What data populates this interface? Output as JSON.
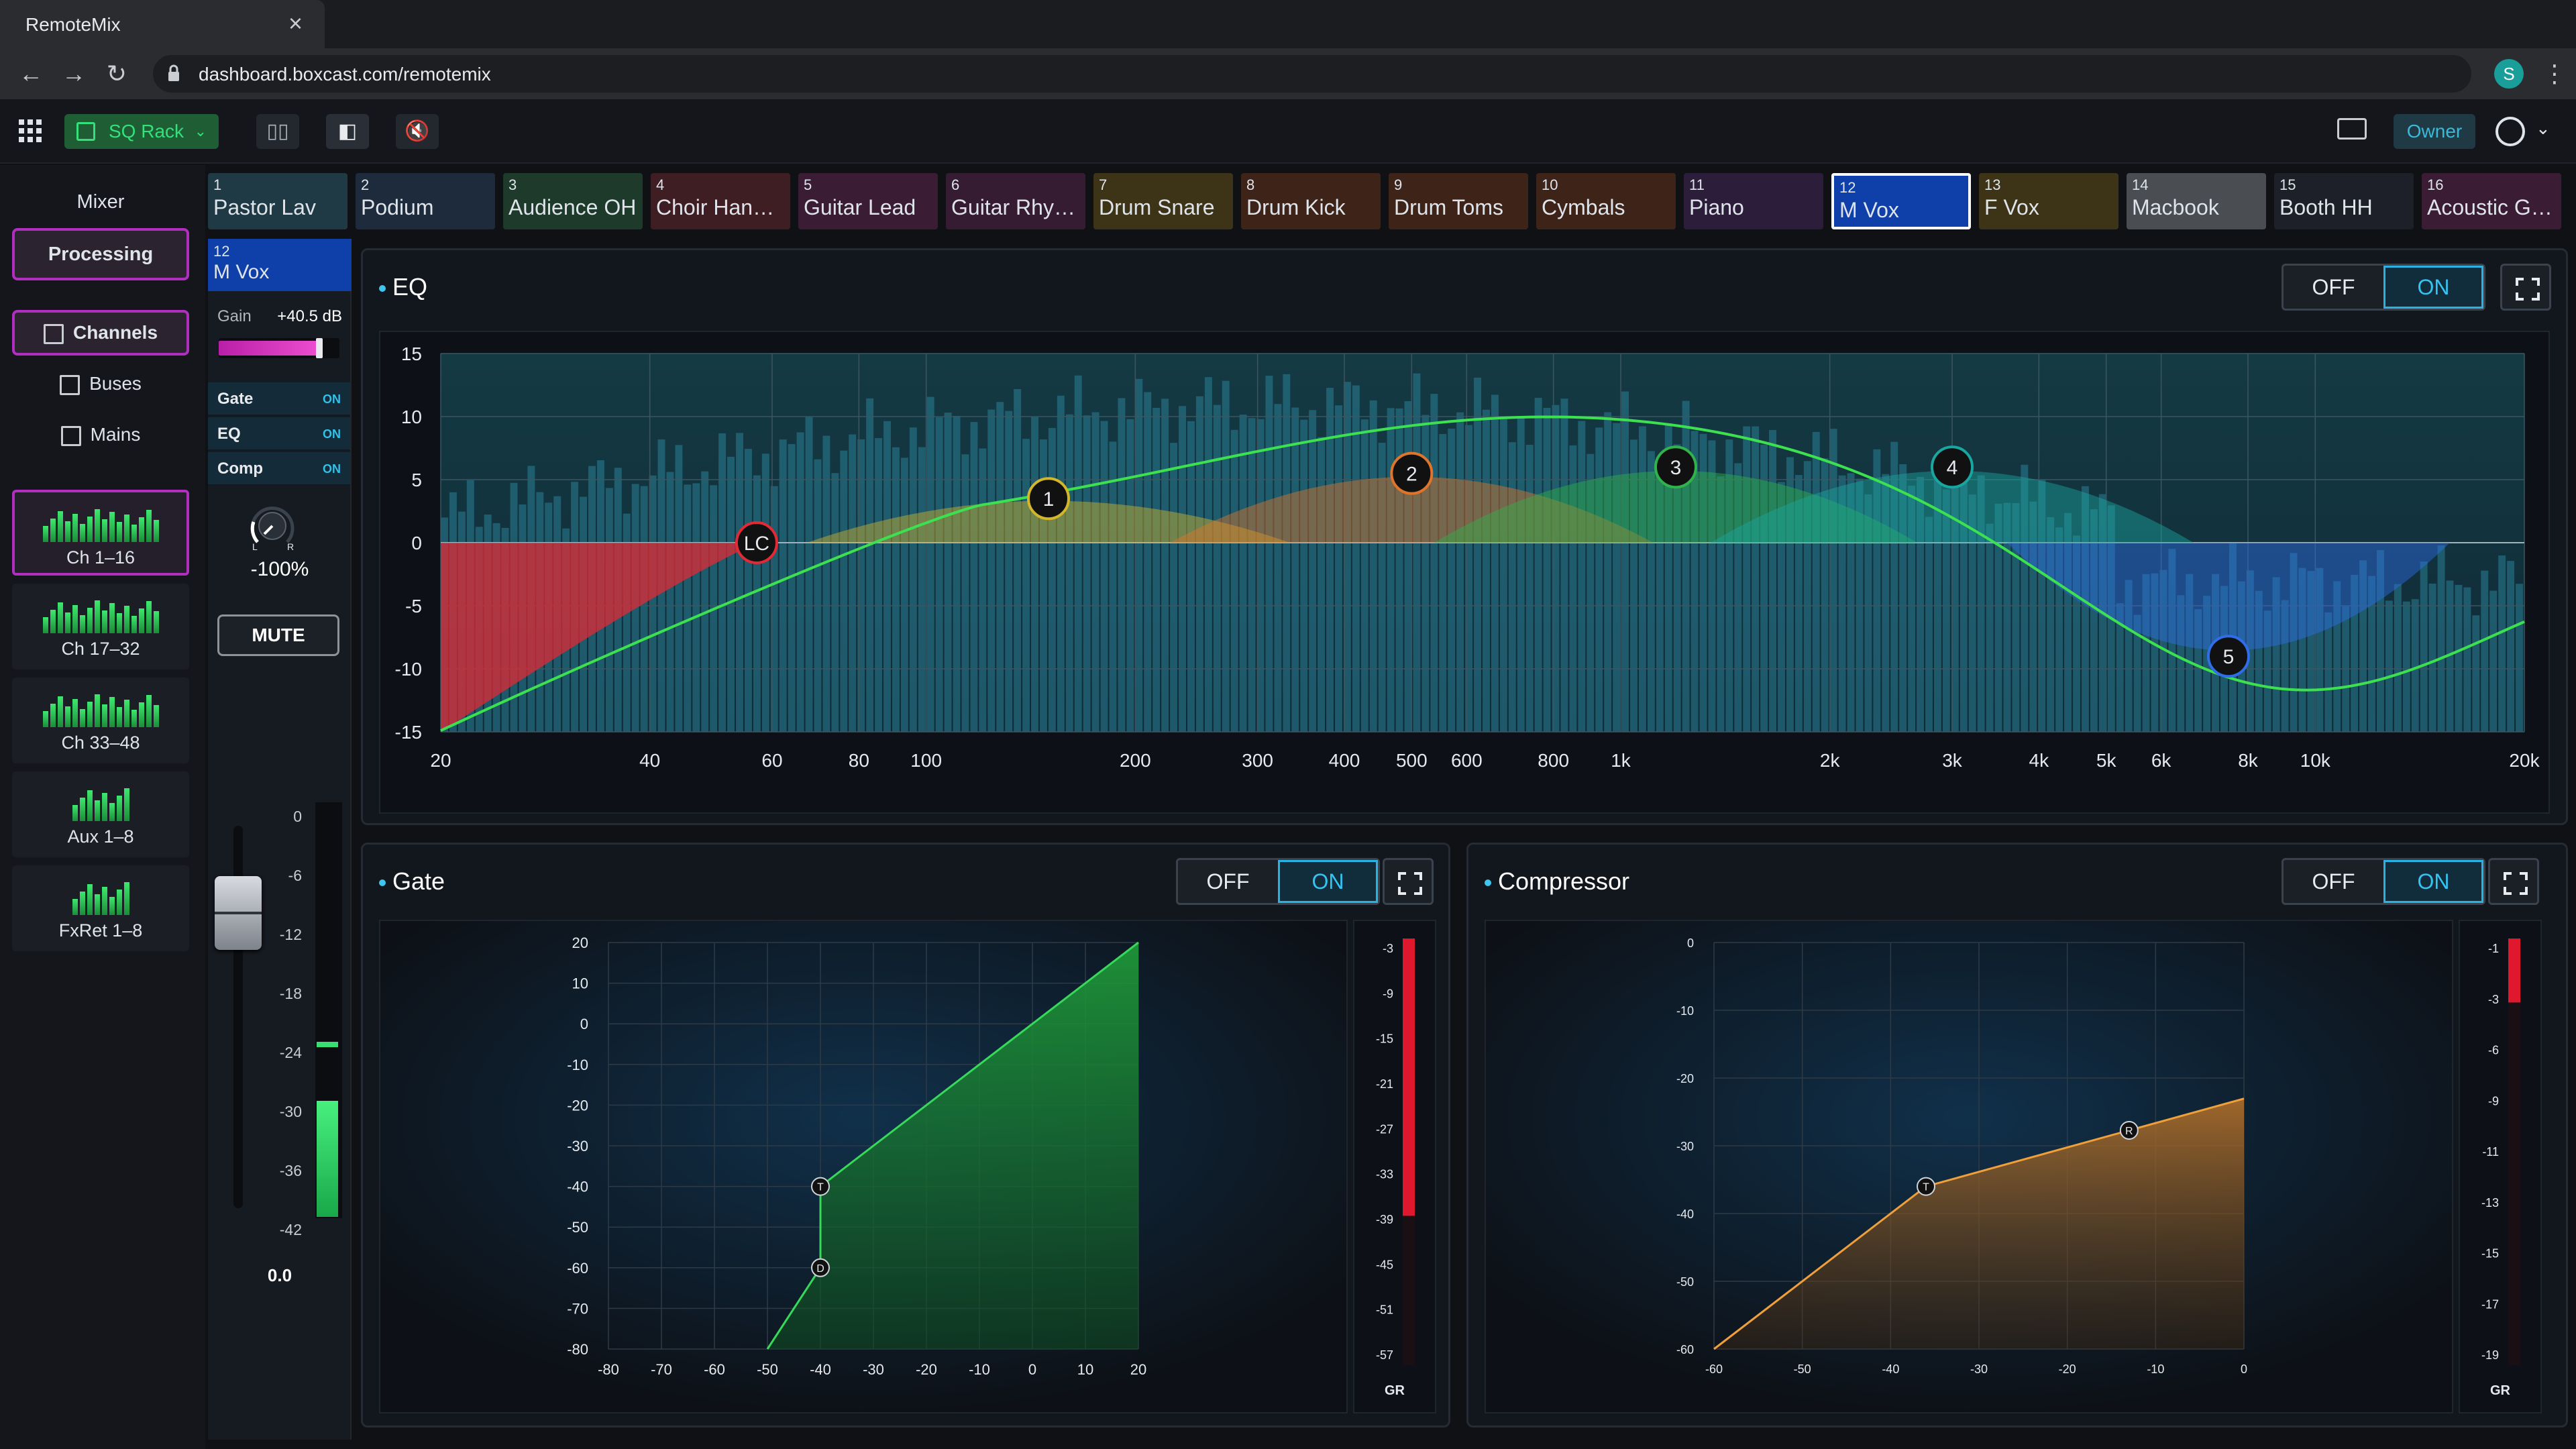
{
  "browser": {
    "tab_title": "RemoteMix",
    "url": "dashboard.boxcast.com/remotemix",
    "profile_initial": "S"
  },
  "header": {
    "rack_label": "SQ Rack",
    "owner_label": "Owner",
    "accent": "#33e07a"
  },
  "sidebar": {
    "mixer_label": "Mixer",
    "processing_label": "Processing",
    "nav": [
      {
        "label": "Channels",
        "icon": "sliders-icon",
        "active": true
      },
      {
        "label": "Buses",
        "icon": "buses-icon",
        "active": false
      },
      {
        "label": "Mains",
        "icon": "mains-icon",
        "active": false
      }
    ],
    "banks": [
      {
        "label": "Ch 1–16",
        "active": true,
        "bars": 16
      },
      {
        "label": "Ch 17–32",
        "active": false,
        "bars": 16
      },
      {
        "label": "Ch 33–48",
        "active": false,
        "bars": 16
      },
      {
        "label": "Aux 1–8",
        "active": false,
        "bars": 8
      },
      {
        "label": "FxRet 1–8",
        "active": false,
        "bars": 8
      }
    ]
  },
  "channels": [
    {
      "num": "1",
      "name": "Pastor Lav",
      "color": "#1f3a44"
    },
    {
      "num": "2",
      "name": "Podium",
      "color": "#1e2b3d"
    },
    {
      "num": "3",
      "name": "Audience OH",
      "color": "#1d3a2b"
    },
    {
      "num": "4",
      "name": "Choir Hangi...",
      "color": "#3e1e22"
    },
    {
      "num": "5",
      "name": "Guitar Lead",
      "color": "#3a1c35"
    },
    {
      "num": "6",
      "name": "Guitar Rhyth...",
      "color": "#351c33"
    },
    {
      "num": "7",
      "name": "Drum Snare",
      "color": "#3d3418"
    },
    {
      "num": "8",
      "name": "Drum Kick",
      "color": "#3e2418"
    },
    {
      "num": "9",
      "name": "Drum Toms",
      "color": "#3e2418"
    },
    {
      "num": "10",
      "name": "Cymbals",
      "color": "#3e2418"
    },
    {
      "num": "11",
      "name": "Piano",
      "color": "#2c1e3a"
    },
    {
      "num": "12",
      "name": "M Vox",
      "color": "#0f3fa8",
      "selected": true
    },
    {
      "num": "13",
      "name": "F Vox",
      "color": "#3d3418"
    },
    {
      "num": "14",
      "name": "Macbook",
      "color": "#4a4d52"
    },
    {
      "num": "15",
      "name": "Booth HH",
      "color": "#1d2028"
    },
    {
      "num": "16",
      "name": "Acoustic Gu...",
      "color": "#3a1c35"
    }
  ],
  "strip": {
    "num": "12",
    "name": "M Vox",
    "gain_label": "Gain",
    "gain_value": "+40.5 dB",
    "gain_fraction": 0.85,
    "processing": [
      {
        "label": "Gate",
        "state": "ON"
      },
      {
        "label": "EQ",
        "state": "ON"
      },
      {
        "label": "Comp",
        "state": "ON"
      }
    ],
    "pan_l": "L",
    "pan_r": "R",
    "pan_value": "-100%",
    "mute_label": "MUTE",
    "fader_scale": [
      "0",
      "-6",
      "-12",
      "-18",
      "-24",
      "-30",
      "-36",
      "-42"
    ],
    "fader_value": "0.0",
    "meter_level_db": -29,
    "meter_peak_db": -23
  },
  "eq": {
    "title": "EQ",
    "off_label": "OFF",
    "on_label": "ON",
    "y_ticks": [
      "15",
      "10",
      "5",
      "0",
      "-5",
      "-10",
      "-15"
    ],
    "x_ticks": [
      "20",
      "40",
      "60",
      "80",
      "100",
      "200",
      "300",
      "400",
      "500",
      "600",
      "800",
      "1k",
      "2k",
      "3k",
      "4k",
      "5k",
      "6k",
      "8k",
      "10k",
      "20k"
    ],
    "x_tick_values": [
      20,
      40,
      60,
      80,
      100,
      200,
      300,
      400,
      500,
      600,
      800,
      1000,
      2000,
      3000,
      4000,
      5000,
      6000,
      8000,
      10000,
      20000
    ],
    "bands": [
      {
        "label": "LC",
        "freq": 57,
        "gain": 0,
        "color": "#e02a36"
      },
      {
        "label": "1",
        "freq": 150,
        "gain": 3.5,
        "color": "#d4b62a"
      },
      {
        "label": "2",
        "freq": 500,
        "gain": 5.5,
        "color": "#e0752a"
      },
      {
        "label": "3",
        "freq": 1200,
        "gain": 6,
        "color": "#2fb34a"
      },
      {
        "label": "4",
        "freq": 3000,
        "gain": 6,
        "color": "#1aa6a0"
      },
      {
        "label": "5",
        "freq": 7500,
        "gain": -9,
        "color": "#2f6ee8"
      }
    ]
  },
  "gate": {
    "title": "Gate",
    "off_label": "OFF",
    "on_label": "ON",
    "x_ticks": [
      "-80",
      "-70",
      "-60",
      "-50",
      "-40",
      "-30",
      "-20",
      "-10",
      "0",
      "10",
      "20"
    ],
    "y_ticks": [
      "20",
      "10",
      "0",
      "-10",
      "-20",
      "-30",
      "-40",
      "-50",
      "-60",
      "-70",
      "-80"
    ],
    "threshold_db": -40,
    "depth_db": -60,
    "threshold_label": "T",
    "depth_label": "D",
    "gr_scale": [
      "-3",
      "-9",
      "-15",
      "-21",
      "-27",
      "-33",
      "-39",
      "-45",
      "-51",
      "-57"
    ],
    "gr_label": "GR",
    "gr_level_db": -39
  },
  "compressor": {
    "title": "Compressor",
    "off_label": "OFF",
    "on_label": "ON",
    "x_ticks": [
      "-60",
      "-50",
      "-40",
      "-30",
      "-20",
      "-10",
      "0"
    ],
    "y_ticks": [
      "0",
      "-10",
      "-20",
      "-30",
      "-40",
      "-50",
      "-60"
    ],
    "threshold_db": -36,
    "ratio_point_db": -13,
    "threshold_label": "T",
    "ratio_label": "R",
    "gr_scale": [
      "-1",
      "-3",
      "-6",
      "-9",
      "-11",
      "-13",
      "-15",
      "-17",
      "-19"
    ],
    "gr_label": "GR",
    "gr_level_db": -3
  }
}
